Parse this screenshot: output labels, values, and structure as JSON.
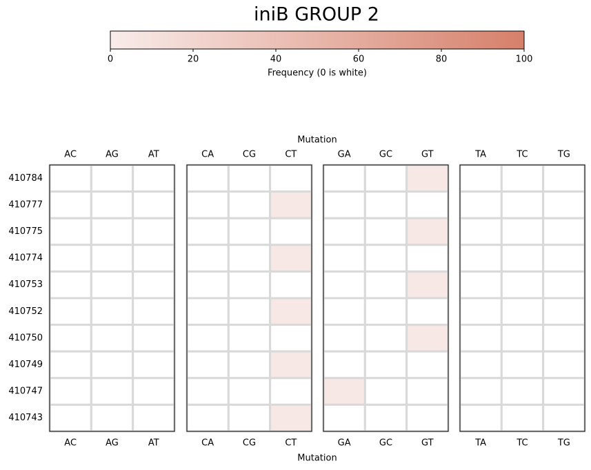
{
  "chart_data": {
    "type": "heatmap",
    "title": "iniB GROUP 2",
    "x_label": "Mutation",
    "colorbar": {
      "label": "Frequency (0 is white)",
      "lim": [
        0,
        100
      ],
      "ticks": [
        0,
        20,
        40,
        60,
        80,
        100
      ],
      "colors": [
        "#f9ecea",
        "#d6806a"
      ],
      "zero_color": "#ffffff"
    },
    "rows": [
      "410784",
      "410777",
      "410775",
      "410774",
      "410753",
      "410752",
      "410750",
      "410749",
      "410747",
      "410743"
    ],
    "panels": [
      {
        "columns": [
          "AC",
          "AG",
          "AT"
        ],
        "values": [
          [
            0,
            0,
            0
          ],
          [
            0,
            0,
            0
          ],
          [
            0,
            0,
            0
          ],
          [
            0,
            0,
            0
          ],
          [
            0,
            0,
            0
          ],
          [
            0,
            0,
            0
          ],
          [
            0,
            0,
            0
          ],
          [
            0,
            0,
            0
          ],
          [
            0,
            0,
            0
          ],
          [
            0,
            0,
            0
          ]
        ]
      },
      {
        "columns": [
          "CA",
          "CG",
          "CT"
        ],
        "values": [
          [
            0,
            0,
            0
          ],
          [
            0,
            0,
            4
          ],
          [
            0,
            0,
            0
          ],
          [
            0,
            0,
            4
          ],
          [
            0,
            0,
            0
          ],
          [
            0,
            0,
            4
          ],
          [
            0,
            0,
            0
          ],
          [
            0,
            0,
            4
          ],
          [
            0,
            0,
            0
          ],
          [
            0,
            0,
            4
          ]
        ]
      },
      {
        "columns": [
          "GA",
          "GC",
          "GT"
        ],
        "values": [
          [
            0,
            0,
            4
          ],
          [
            0,
            0,
            0
          ],
          [
            0,
            0,
            4
          ],
          [
            0,
            0,
            0
          ],
          [
            0,
            0,
            4
          ],
          [
            0,
            0,
            0
          ],
          [
            0,
            0,
            4
          ],
          [
            0,
            0,
            0
          ],
          [
            4,
            0,
            0
          ],
          [
            0,
            0,
            0
          ]
        ]
      },
      {
        "columns": [
          "TA",
          "TC",
          "TG"
        ],
        "values": [
          [
            0,
            0,
            0
          ],
          [
            0,
            0,
            0
          ],
          [
            0,
            0,
            0
          ],
          [
            0,
            0,
            0
          ],
          [
            0,
            0,
            0
          ],
          [
            0,
            0,
            0
          ],
          [
            0,
            0,
            0
          ],
          [
            0,
            0,
            0
          ],
          [
            0,
            0,
            0
          ],
          [
            0,
            0,
            0
          ]
        ]
      }
    ]
  }
}
